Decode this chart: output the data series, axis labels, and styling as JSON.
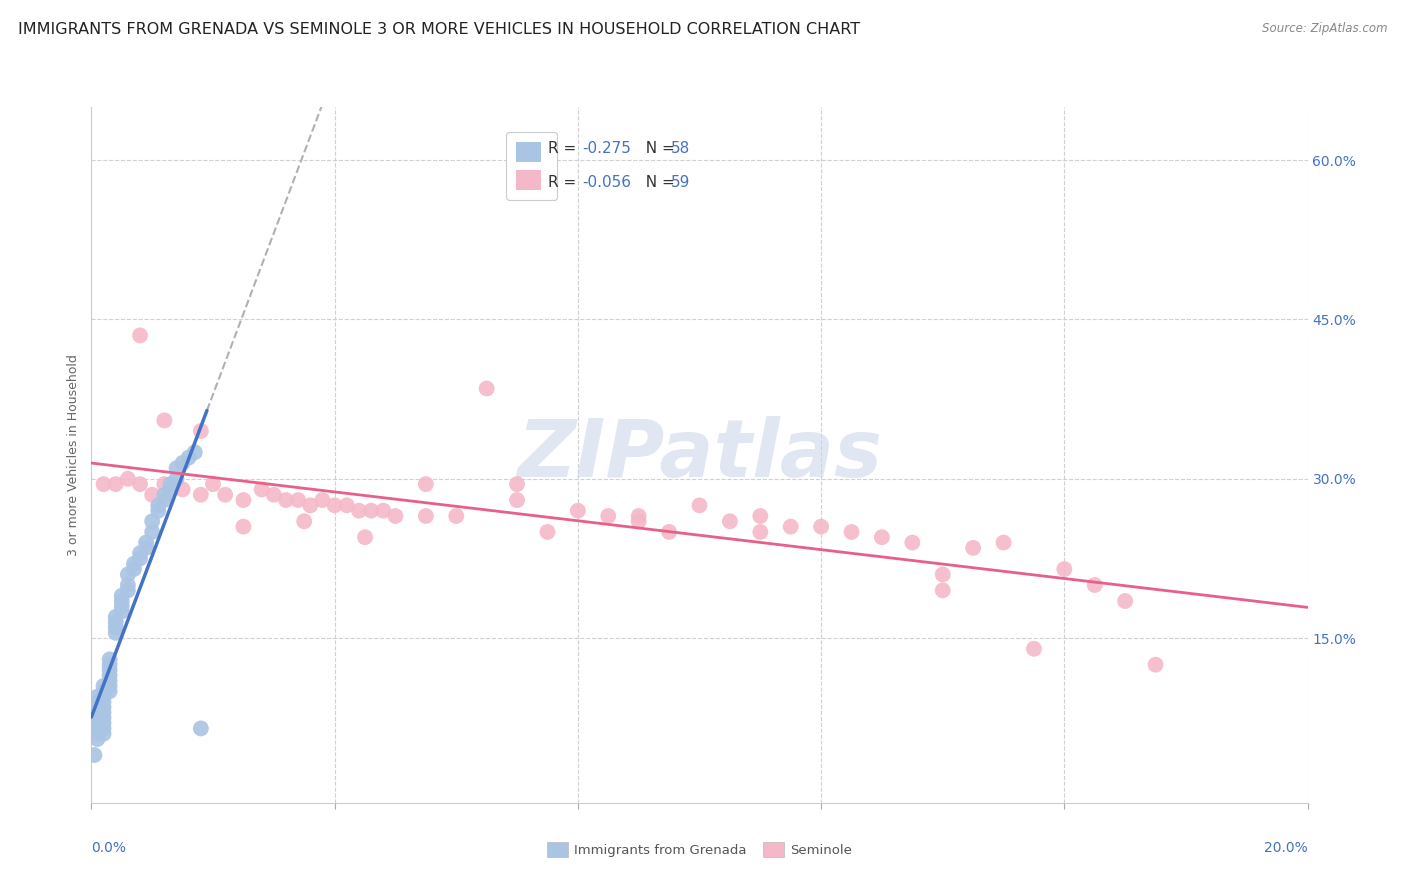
{
  "title": "IMMIGRANTS FROM GRENADA VS SEMINOLE 3 OR MORE VEHICLES IN HOUSEHOLD CORRELATION CHART",
  "source": "Source: ZipAtlas.com",
  "ylabel": "3 or more Vehicles in Household",
  "ytick_values": [
    0.15,
    0.3,
    0.45,
    0.6
  ],
  "xlim": [
    0.0,
    0.2
  ],
  "ylim": [
    -0.005,
    0.65
  ],
  "legend_label1": "Immigrants from Grenada",
  "legend_label2": "Seminole",
  "R1": "-0.275",
  "N1": "58",
  "R2": "-0.056",
  "N2": "59",
  "color1": "#aac4e4",
  "color2": "#f5b8c8",
  "line_color1": "#4472c4",
  "line_color2": "#e8608a",
  "watermark": "ZIPatlas",
  "title_fontsize": 11.5,
  "axis_label_fontsize": 9,
  "tick_fontsize": 10,
  "grenada_x": [
    0.0005,
    0.001,
    0.001,
    0.001,
    0.001,
    0.001,
    0.001,
    0.001,
    0.001,
    0.001,
    0.002,
    0.002,
    0.002,
    0.002,
    0.002,
    0.002,
    0.002,
    0.002,
    0.002,
    0.002,
    0.003,
    0.003,
    0.003,
    0.003,
    0.003,
    0.003,
    0.003,
    0.004,
    0.004,
    0.004,
    0.004,
    0.005,
    0.005,
    0.005,
    0.005,
    0.006,
    0.006,
    0.006,
    0.007,
    0.007,
    0.008,
    0.008,
    0.009,
    0.009,
    0.01,
    0.01,
    0.011,
    0.011,
    0.012,
    0.012,
    0.013,
    0.013,
    0.014,
    0.014,
    0.015,
    0.016,
    0.017,
    0.018
  ],
  "grenada_y": [
    0.04,
    0.055,
    0.06,
    0.065,
    0.07,
    0.075,
    0.08,
    0.085,
    0.09,
    0.095,
    0.06,
    0.065,
    0.07,
    0.075,
    0.08,
    0.085,
    0.09,
    0.095,
    0.1,
    0.105,
    0.1,
    0.105,
    0.11,
    0.115,
    0.12,
    0.125,
    0.13,
    0.155,
    0.16,
    0.165,
    0.17,
    0.175,
    0.18,
    0.185,
    0.19,
    0.195,
    0.2,
    0.21,
    0.215,
    0.22,
    0.225,
    0.23,
    0.235,
    0.24,
    0.25,
    0.26,
    0.27,
    0.275,
    0.28,
    0.285,
    0.29,
    0.295,
    0.3,
    0.31,
    0.315,
    0.32,
    0.325,
    0.065
  ],
  "seminole_x": [
    0.002,
    0.004,
    0.006,
    0.008,
    0.01,
    0.012,
    0.015,
    0.018,
    0.02,
    0.022,
    0.025,
    0.028,
    0.03,
    0.032,
    0.034,
    0.036,
    0.038,
    0.04,
    0.042,
    0.044,
    0.046,
    0.048,
    0.05,
    0.055,
    0.06,
    0.065,
    0.07,
    0.075,
    0.08,
    0.085,
    0.09,
    0.095,
    0.1,
    0.105,
    0.11,
    0.115,
    0.12,
    0.125,
    0.13,
    0.135,
    0.14,
    0.145,
    0.15,
    0.155,
    0.16,
    0.165,
    0.17,
    0.175,
    0.008,
    0.012,
    0.018,
    0.025,
    0.035,
    0.045,
    0.055,
    0.07,
    0.09,
    0.11,
    0.14
  ],
  "seminole_y": [
    0.295,
    0.295,
    0.3,
    0.295,
    0.285,
    0.295,
    0.29,
    0.285,
    0.295,
    0.285,
    0.28,
    0.29,
    0.285,
    0.28,
    0.28,
    0.275,
    0.28,
    0.275,
    0.275,
    0.27,
    0.27,
    0.27,
    0.265,
    0.265,
    0.265,
    0.385,
    0.295,
    0.25,
    0.27,
    0.265,
    0.26,
    0.25,
    0.275,
    0.26,
    0.265,
    0.255,
    0.255,
    0.25,
    0.245,
    0.24,
    0.21,
    0.235,
    0.24,
    0.14,
    0.215,
    0.2,
    0.185,
    0.125,
    0.435,
    0.355,
    0.345,
    0.255,
    0.26,
    0.245,
    0.295,
    0.28,
    0.265,
    0.25,
    0.195
  ]
}
